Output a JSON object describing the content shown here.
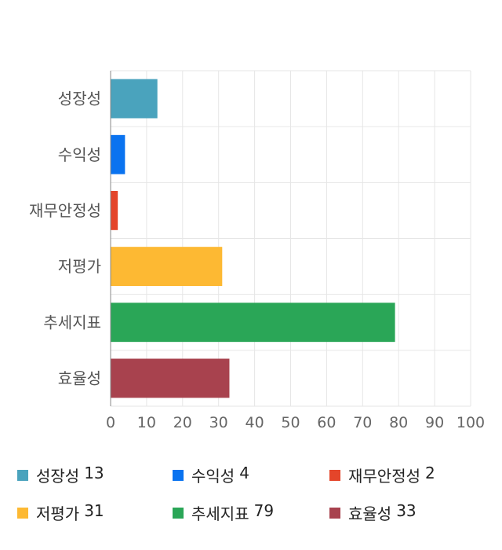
{
  "chart_data": {
    "type": "bar",
    "orientation": "horizontal",
    "categories": [
      "성장성",
      "수익성",
      "재무안정성",
      "저평가",
      "추세지표",
      "효율성"
    ],
    "values": [
      13,
      4,
      2,
      31,
      79,
      33
    ],
    "colors": [
      "#4aa3bd",
      "#0a73f0",
      "#e4452a",
      "#fdb933",
      "#2aa657",
      "#a8424e"
    ],
    "xlim": [
      0,
      100
    ],
    "xticks": [
      "0",
      "10",
      "20",
      "30",
      "40",
      "50",
      "60",
      "70",
      "80",
      "90",
      "100"
    ],
    "grid": true,
    "legend_position": "bottom"
  },
  "legend": [
    {
      "label": "성장성",
      "value": "13",
      "color": "#4aa3bd"
    },
    {
      "label": "수익성",
      "value": "4",
      "color": "#0a73f0"
    },
    {
      "label": "재무안정성",
      "value": "2",
      "color": "#e4452a"
    },
    {
      "label": "저평가",
      "value": "31",
      "color": "#fdb933"
    },
    {
      "label": "추세지표",
      "value": "79",
      "color": "#2aa657"
    },
    {
      "label": "효율성",
      "value": "33",
      "color": "#a8424e"
    }
  ]
}
